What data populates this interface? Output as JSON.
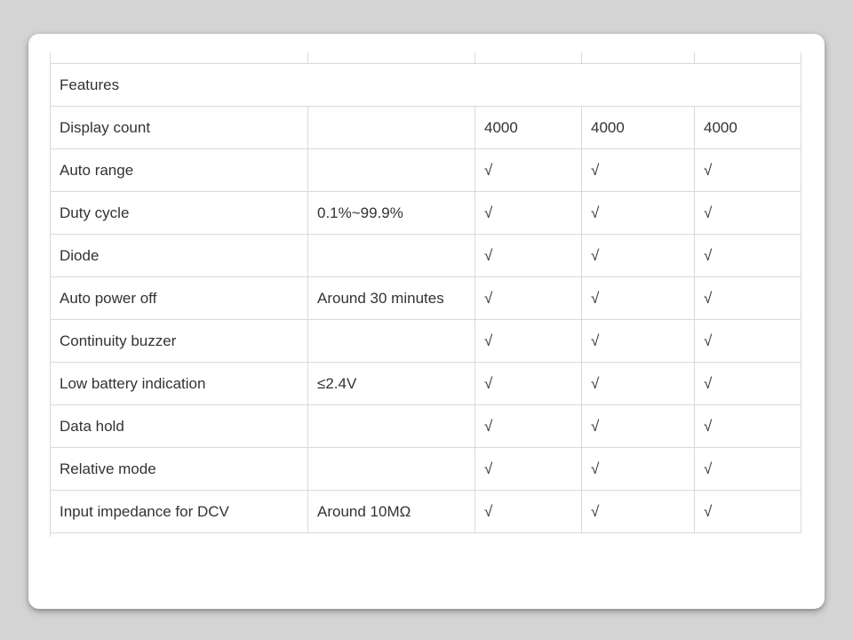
{
  "colors": {
    "page_background": "#d4d4d4",
    "card_background": "#ffffff",
    "table_border": "#d9d9d9",
    "text": "#333333"
  },
  "table": {
    "header_label": "Features",
    "check_glyph": "√",
    "rows": [
      {
        "feature": "Display count",
        "spec": "",
        "values": [
          "4000",
          "4000",
          "4000"
        ]
      },
      {
        "feature": "Auto range",
        "spec": "",
        "values": [
          "√",
          "√",
          "√"
        ]
      },
      {
        "feature": "Duty cycle",
        "spec": "0.1%~99.9%",
        "values": [
          "√",
          "√",
          "√"
        ]
      },
      {
        "feature": "Diode",
        "spec": "",
        "values": [
          "√",
          "√",
          "√"
        ]
      },
      {
        "feature": "Auto power off",
        "spec": "Around 30 minutes",
        "values": [
          "√",
          "√",
          "√"
        ]
      },
      {
        "feature": "Continuity buzzer",
        "spec": "",
        "values": [
          "√",
          "√",
          "√"
        ]
      },
      {
        "feature": "Low battery indication",
        "spec": "≤2.4V",
        "values": [
          "√",
          "√",
          "√"
        ]
      },
      {
        "feature": "Data hold",
        "spec": "",
        "values": [
          "√",
          "√",
          "√"
        ]
      },
      {
        "feature": "Relative mode",
        "spec": "",
        "values": [
          "√",
          "√",
          "√"
        ]
      },
      {
        "feature": "Input impedance for DCV",
        "spec": "Around 10MΩ",
        "values": [
          "√",
          "√",
          "√"
        ]
      }
    ]
  }
}
